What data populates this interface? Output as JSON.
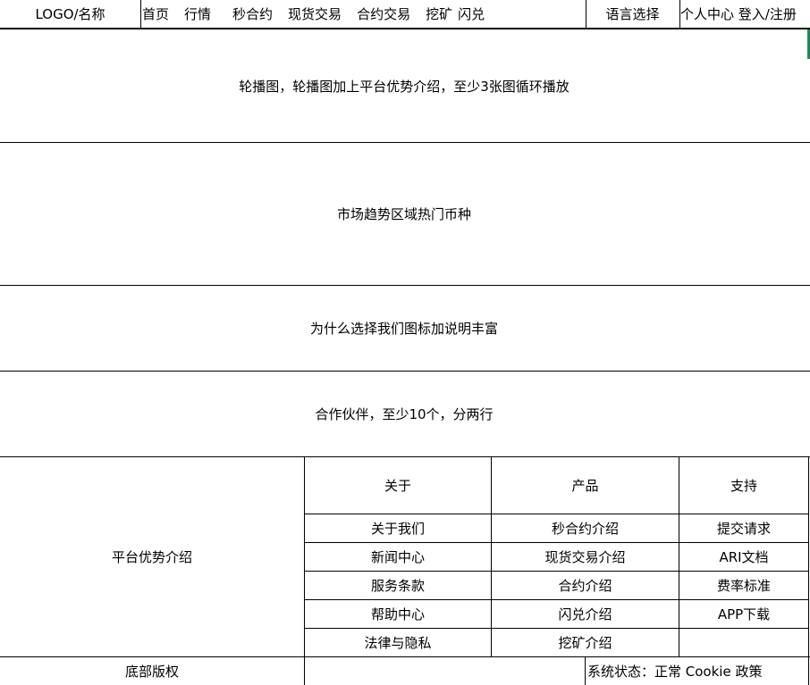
{
  "header": {
    "logo": "LOGO/名称",
    "nav": [
      "首页",
      "行情",
      "秒合约",
      "现货交易",
      "合约交易",
      "挖矿",
      "闪兑"
    ],
    "language": "语言选择",
    "user": "个人中心 登入/注册"
  },
  "sections": {
    "carousel": "轮播图，轮播图加上平台优势介绍，至少3张图循环播放",
    "market": "市场趋势区域热门币种",
    "why": "为什么选择我们图标加说明丰富",
    "partners": "合作伙伴，至少10个，分两行"
  },
  "footer": {
    "left": "平台优势介绍",
    "columns": [
      {
        "title": "关于",
        "items": [
          "关于我们",
          "新闻中心",
          "服务条款",
          "帮助中心",
          "法律与隐私"
        ]
      },
      {
        "title": "产品",
        "items": [
          "秒合约介绍",
          "现货交易介绍",
          "合约介绍",
          "闪兑介绍",
          "挖矿介绍"
        ]
      },
      {
        "title": "支持",
        "items": [
          "提交请求",
          "ARI文档",
          "费率标准",
          "APP下载",
          ""
        ]
      }
    ],
    "copyright": "底部版权",
    "status": "系统状态：正常 Cookie 政策"
  },
  "colors": {
    "accent": "#1e8a5a"
  }
}
